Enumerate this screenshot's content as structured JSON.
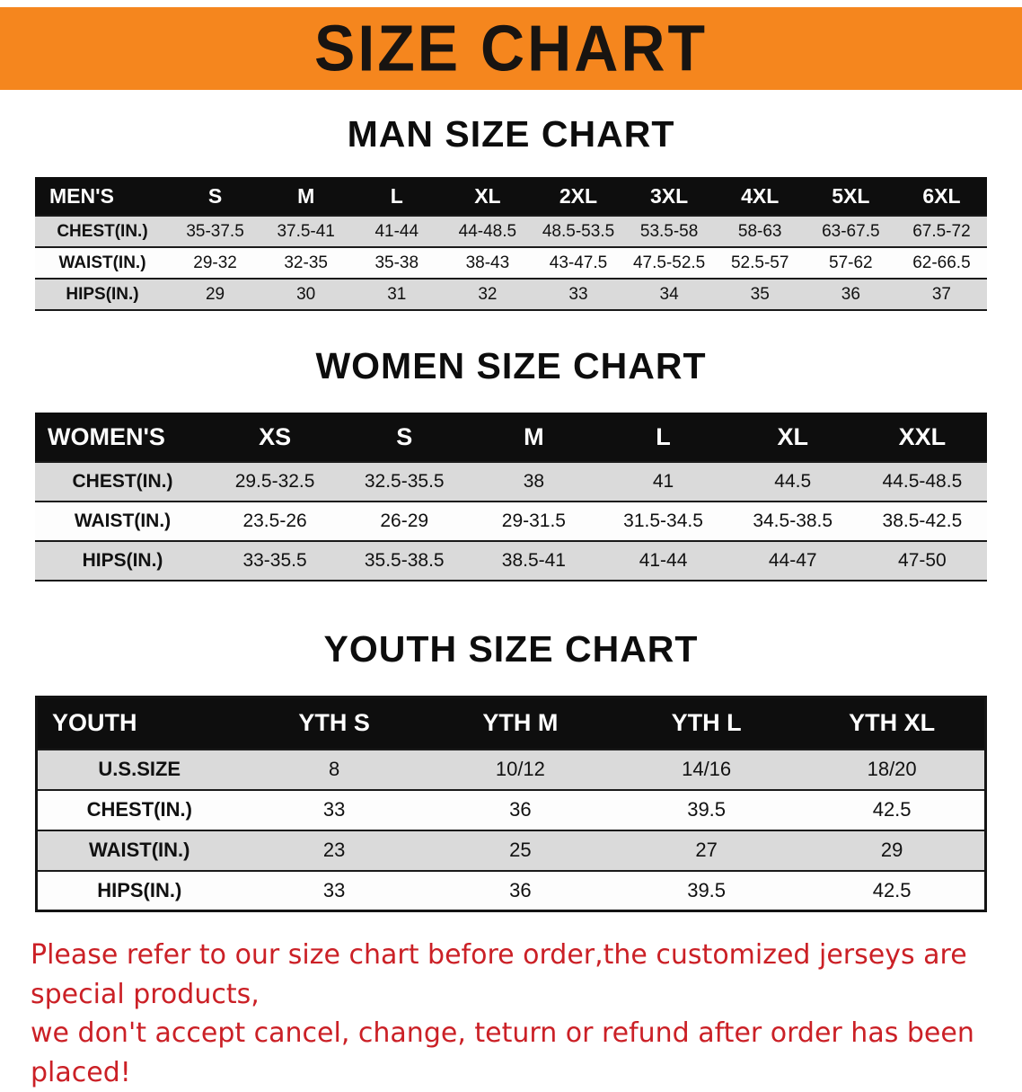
{
  "banner": {
    "title": "SIZE CHART",
    "bg_color": "#F5861E"
  },
  "sections": [
    {
      "id": "men",
      "heading": "MAN SIZE CHART",
      "table": {
        "header_label": "MEN'S",
        "columns": [
          "S",
          "M",
          "L",
          "XL",
          "2XL",
          "3XL",
          "4XL",
          "5XL",
          "6XL"
        ],
        "rows": [
          {
            "label": "CHEST(IN.)",
            "values": [
              "35-37.5",
              "37.5-41",
              "41-44",
              "44-48.5",
              "48.5-53.5",
              "53.5-58",
              "58-63",
              "63-67.5",
              "67.5-72"
            ]
          },
          {
            "label": "WAIST(IN.)",
            "values": [
              "29-32",
              "32-35",
              "35-38",
              "38-43",
              "43-47.5",
              "47.5-52.5",
              "52.5-57",
              "57-62",
              "62-66.5"
            ]
          },
          {
            "label": "HIPS(IN.)",
            "values": [
              "29",
              "30",
              "31",
              "32",
              "33",
              "34",
              "35",
              "36",
              "37"
            ]
          }
        ]
      }
    },
    {
      "id": "women",
      "heading": "WOMEN SIZE CHART",
      "table": {
        "header_label": "WOMEN'S",
        "columns": [
          "XS",
          "S",
          "M",
          "L",
          "XL",
          "XXL"
        ],
        "rows": [
          {
            "label": "CHEST(IN.)",
            "values": [
              "29.5-32.5",
              "32.5-35.5",
              "38",
              "41",
              "44.5",
              "44.5-48.5"
            ]
          },
          {
            "label": "WAIST(IN.)",
            "values": [
              "23.5-26",
              "26-29",
              "29-31.5",
              "31.5-34.5",
              "34.5-38.5",
              "38.5-42.5"
            ]
          },
          {
            "label": "HIPS(IN.)",
            "values": [
              "33-35.5",
              "35.5-38.5",
              "38.5-41",
              "41-44",
              "44-47",
              "47-50"
            ]
          }
        ]
      }
    },
    {
      "id": "youth",
      "heading": "YOUTH SIZE CHART",
      "table": {
        "header_label": "YOUTH",
        "columns": [
          "YTH S",
          "YTH M",
          "YTH L",
          "YTH XL"
        ],
        "rows": [
          {
            "label": "U.S.SIZE",
            "values": [
              "8",
              "10/12",
              "14/16",
              "18/20"
            ]
          },
          {
            "label": "CHEST(IN.)",
            "values": [
              "33",
              "36",
              "39.5",
              "42.5"
            ]
          },
          {
            "label": "WAIST(IN.)",
            "values": [
              "23",
              "25",
              "27",
              "29"
            ]
          },
          {
            "label": "HIPS(IN.)",
            "values": [
              "33",
              "36",
              "39.5",
              "42.5"
            ]
          }
        ]
      }
    }
  ],
  "footer": {
    "text_color": "#cb2026",
    "lines": [
      "Please refer to our size chart before order,the customized jerseys are special products,",
      "we don't accept cancel, change, teturn or refund after order has been placed!"
    ]
  }
}
